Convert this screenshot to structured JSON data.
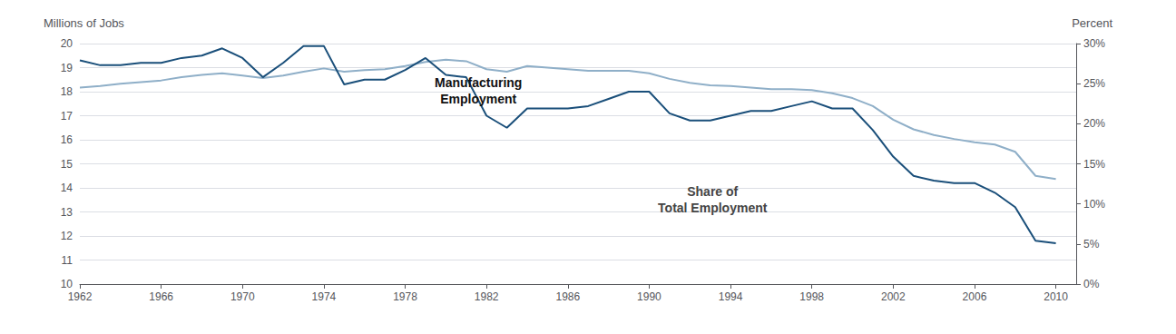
{
  "chart_data": {
    "type": "line",
    "x": [
      1962,
      1963,
      1964,
      1965,
      1966,
      1967,
      1968,
      1969,
      1970,
      1971,
      1972,
      1973,
      1974,
      1975,
      1976,
      1977,
      1978,
      1979,
      1980,
      1981,
      1982,
      1983,
      1984,
      1985,
      1986,
      1987,
      1988,
      1989,
      1990,
      1991,
      1992,
      1993,
      1994,
      1995,
      1996,
      1997,
      1998,
      1999,
      2000,
      2001,
      2002,
      2003,
      2004,
      2005,
      2006,
      2007,
      2008,
      2009,
      2010
    ],
    "series": [
      {
        "color": "#1a4f7a",
        "values": [
          19.3,
          19.1,
          19.1,
          19.2,
          19.2,
          19.4,
          19.5,
          19.8,
          19.4,
          18.6,
          19.2,
          19.9,
          19.9,
          18.3,
          18.5,
          18.5,
          18.9,
          19.4,
          18.7,
          18.6,
          17.0,
          16.5,
          17.3,
          17.3,
          17.3,
          17.4,
          17.7,
          18.0,
          18.0,
          17.1,
          16.8,
          16.8,
          17.0,
          17.2,
          17.2,
          17.4,
          17.6,
          17.3,
          17.3,
          16.4,
          15.3,
          14.5,
          14.3,
          14.2,
          14.2,
          13.8,
          13.2,
          11.8,
          11.7
        ]
      },
      {
        "color": "#8fafc8",
        "axis": "y2",
        "values": [
          24.5,
          24.7,
          25.0,
          25.2,
          25.4,
          25.8,
          26.1,
          26.3,
          26.0,
          25.7,
          26.0,
          26.5,
          26.9,
          26.5,
          26.7,
          26.8,
          27.2,
          27.7,
          28.0,
          27.8,
          26.8,
          26.5,
          27.2,
          27.0,
          26.8,
          26.6,
          26.6,
          26.6,
          26.3,
          25.6,
          25.1,
          24.8,
          24.7,
          24.5,
          24.3,
          24.3,
          24.2,
          23.8,
          23.2,
          22.2,
          20.5,
          19.3,
          18.6,
          18.1,
          17.7,
          17.4,
          16.5,
          13.5,
          13.1
        ]
      }
    ],
    "ylabel": "Millions of Jobs",
    "y2label": "Percent",
    "xlim": [
      1962,
      2011
    ],
    "xticks": [
      1962,
      1966,
      1970,
      1974,
      1978,
      1982,
      1986,
      1990,
      1994,
      1998,
      2002,
      2006,
      2010
    ],
    "ylim": [
      10,
      20
    ],
    "yticks": [
      10,
      11,
      12,
      13,
      14,
      15,
      16,
      17,
      18,
      19,
      20
    ],
    "y2lim": [
      0,
      30
    ],
    "y2ticks": [
      {
        "value": 0,
        "label": "0%"
      },
      {
        "value": 5,
        "label": "5%"
      },
      {
        "value": 10,
        "label": "10%"
      },
      {
        "value": 15,
        "label": "15%"
      },
      {
        "value": 20,
        "label": "20%"
      },
      {
        "value": 25,
        "label": "25%"
      },
      {
        "value": 30,
        "label": "30%"
      }
    ],
    "grid": true,
    "annotations": [
      "Manufacturing\nEmployment",
      "Share of\nTotal Employment"
    ]
  }
}
